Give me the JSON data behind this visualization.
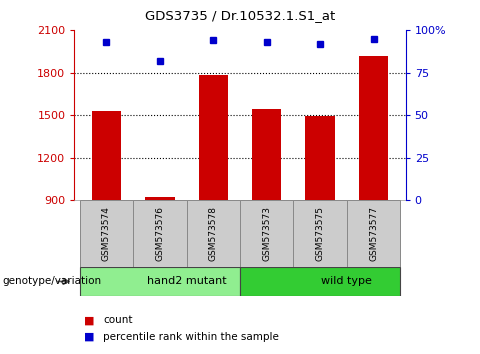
{
  "title": "GDS3735 / Dr.10532.1.S1_at",
  "samples": [
    "GSM573574",
    "GSM573576",
    "GSM573578",
    "GSM573573",
    "GSM573575",
    "GSM573577"
  ],
  "counts": [
    1530,
    920,
    1780,
    1540,
    1490,
    1920
  ],
  "percentiles": [
    93,
    82,
    94,
    93,
    92,
    95
  ],
  "groups": [
    {
      "label": "hand2 mutant",
      "start": 0,
      "end": 3,
      "color": "#90EE90"
    },
    {
      "label": "wild type",
      "start": 3,
      "end": 6,
      "color": "#33CC33"
    }
  ],
  "ylim_left": [
    900,
    2100
  ],
  "yticks_left": [
    900,
    1200,
    1500,
    1800,
    2100
  ],
  "ylim_right": [
    0,
    100
  ],
  "yticks_right": [
    0,
    25,
    50,
    75,
    100
  ],
  "bar_color": "#CC0000",
  "dot_color": "#0000CC",
  "bar_width": 0.55,
  "left_tick_color": "#CC0000",
  "right_tick_color": "#0000CC",
  "sample_box_color": "#cccccc",
  "group_label": "genotype/variation",
  "grid_dotted_ticks": [
    1800,
    1500,
    1200
  ],
  "percentile_dot_size": 5
}
